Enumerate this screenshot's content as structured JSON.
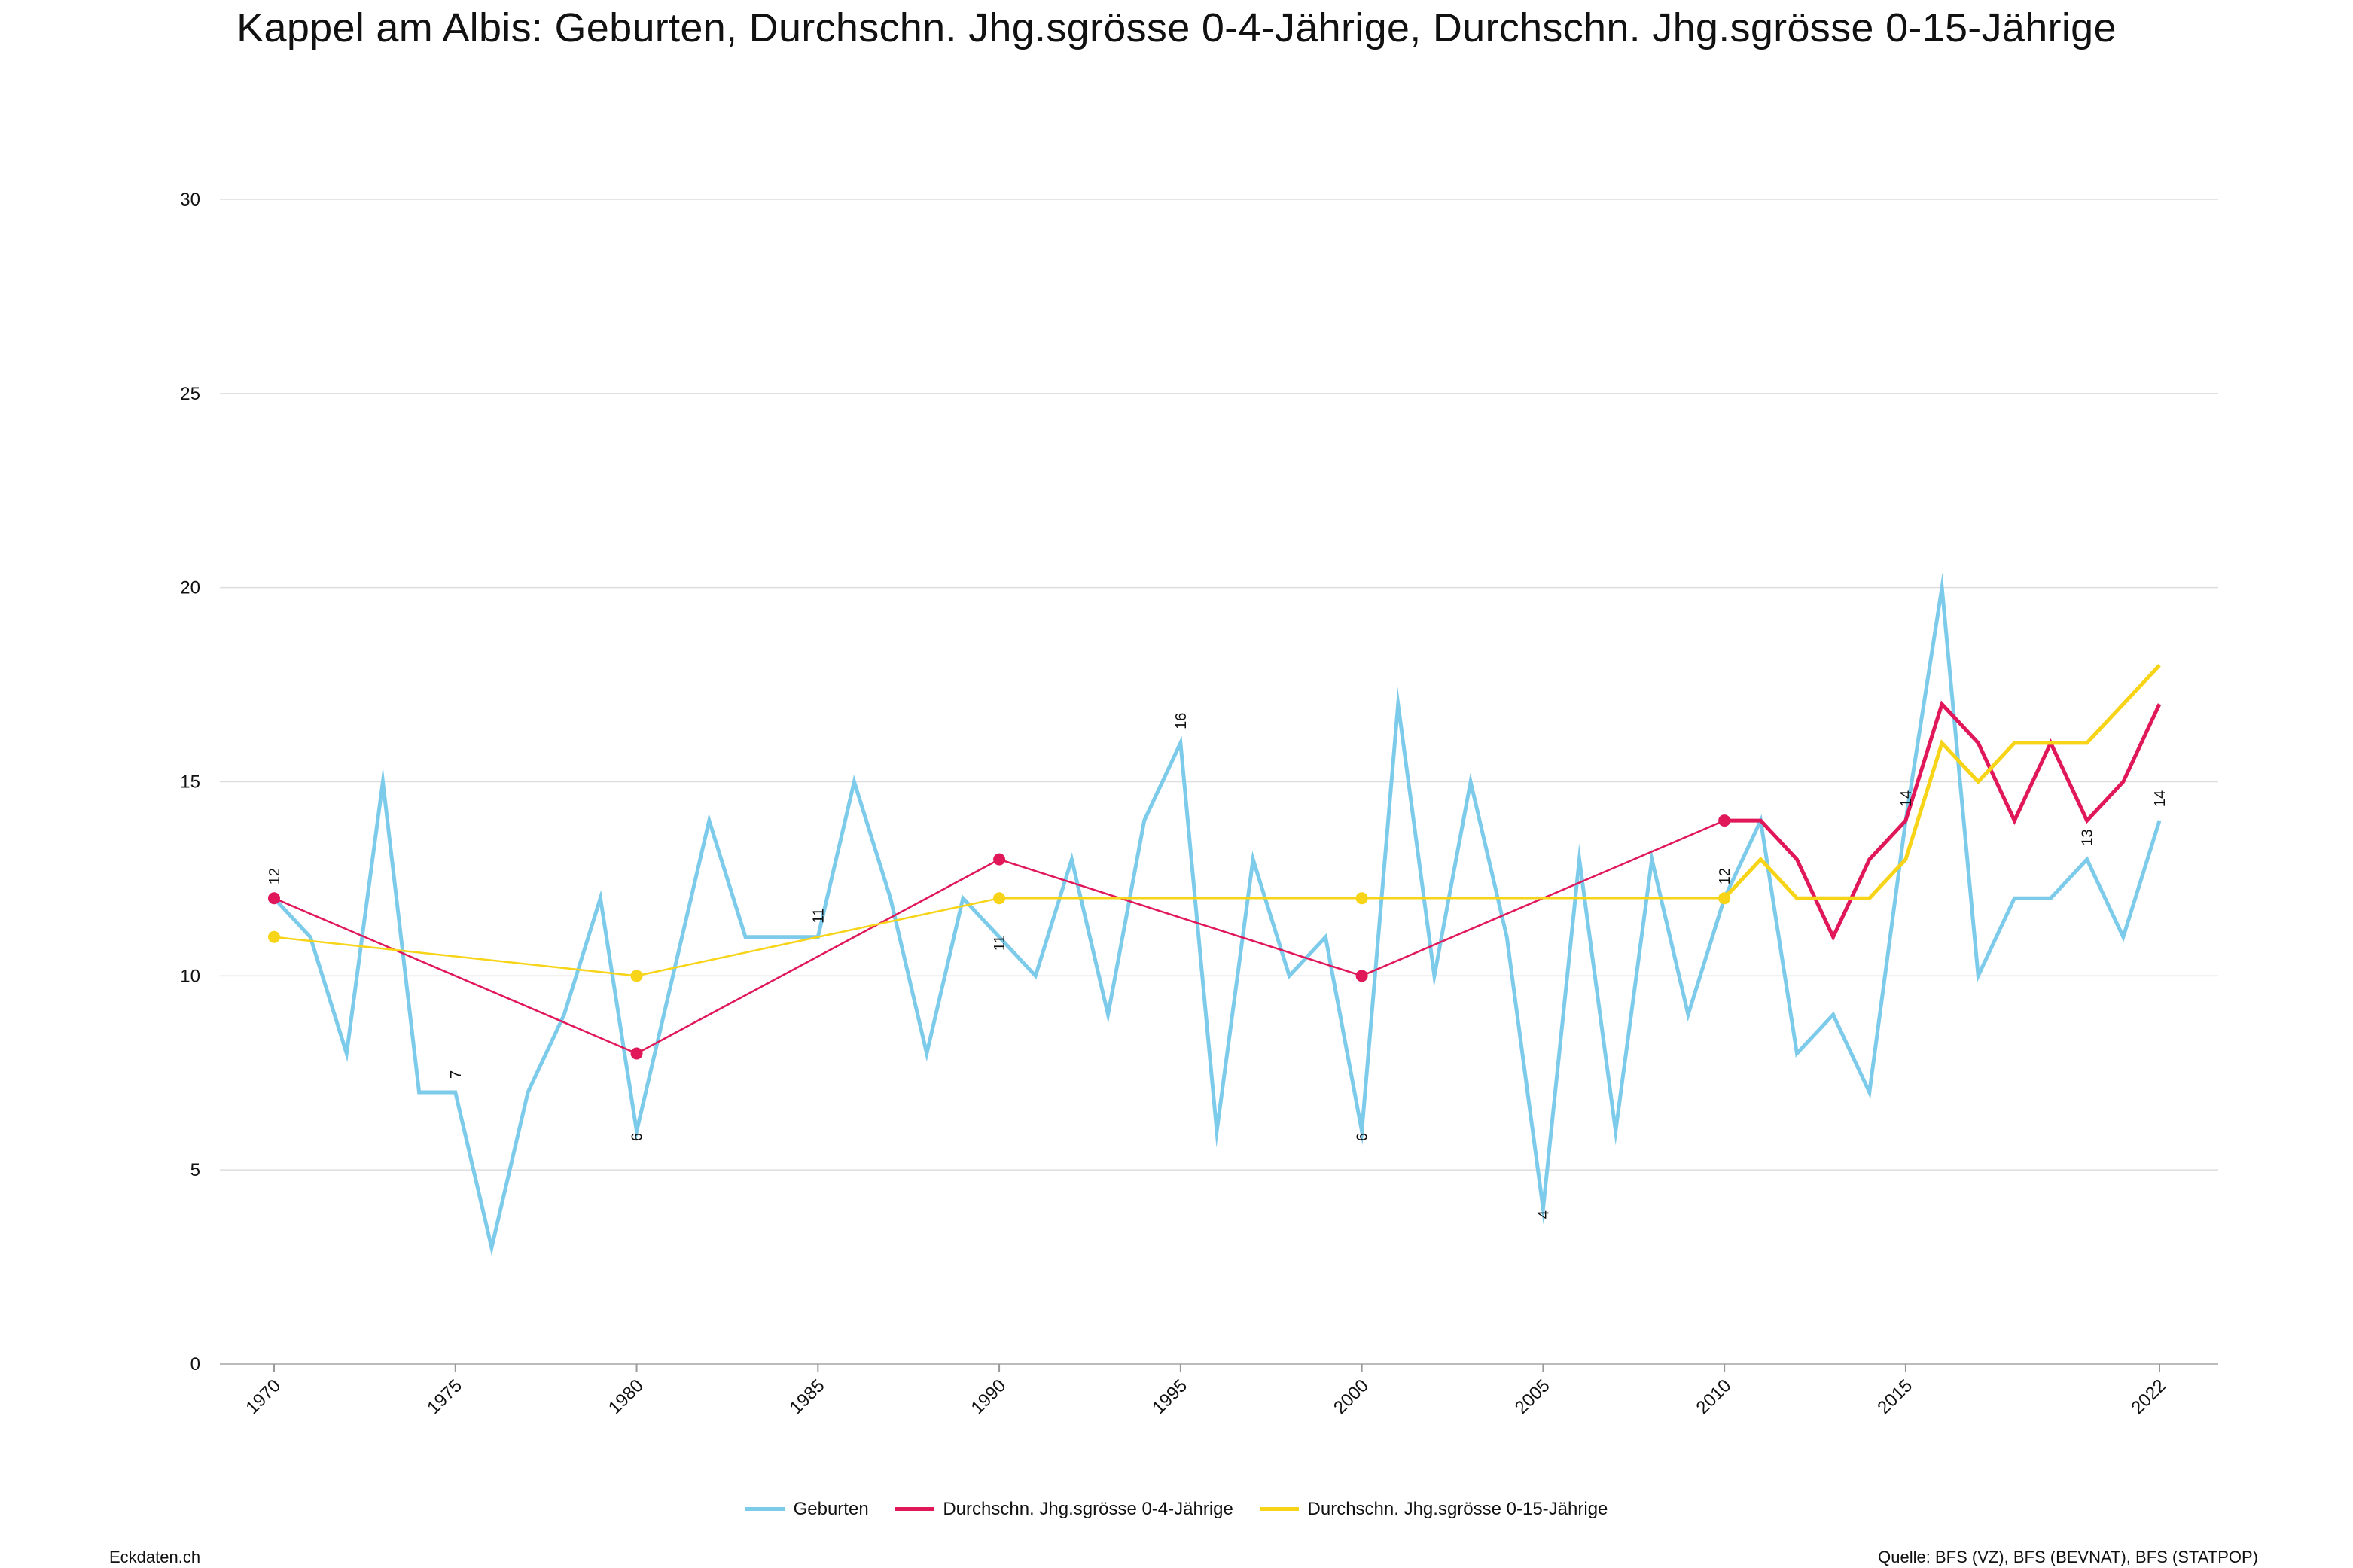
{
  "title": "Kappel am Albis: Geburten, Durchschn. Jhg.sgrösse 0-4-Jährige, Durchschn. Jhg.sgrösse 0-15-Jährige",
  "footer": {
    "left": "Eckdaten.ch",
    "right": "Quelle: BFS (VZ), BFS (BEVNAT), BFS (STATPOP)"
  },
  "colors": {
    "geburten": "#7dcbea",
    "jhg04": "#e0185a",
    "jhg015": "#f7d417",
    "grid": "#dddddd"
  },
  "chart_data": {
    "type": "line",
    "title": "Kappel am Albis: Geburten, Durchschn. Jhg.sgrösse 0-4-Jährige, Durchschn. Jhg.sgrösse 0-15-Jährige",
    "xlim": [
      1970,
      2022
    ],
    "ylim": [
      0,
      30
    ],
    "x_ticks": [
      "1970",
      "1975",
      "1980",
      "1985",
      "1990",
      "1995",
      "2000",
      "2005",
      "2010",
      "2015",
      "2022"
    ],
    "y_ticks": [
      "0",
      "5",
      "10",
      "15",
      "20",
      "25",
      "30"
    ],
    "grid": "horizontal",
    "legend_position": "bottom",
    "series": [
      {
        "name": "Geburten",
        "x": [
          1970,
          1971,
          1972,
          1973,
          1974,
          1975,
          1976,
          1977,
          1978,
          1979,
          1980,
          1981,
          1982,
          1983,
          1984,
          1985,
          1986,
          1987,
          1988,
          1989,
          1990,
          1991,
          1992,
          1993,
          1994,
          1995,
          1996,
          1997,
          1998,
          1999,
          2000,
          2001,
          2002,
          2003,
          2004,
          2005,
          2006,
          2007,
          2008,
          2009,
          2010,
          2011,
          2012,
          2013,
          2014,
          2015,
          2016,
          2017,
          2018,
          2019,
          2020,
          2021,
          2022
        ],
        "y": [
          12,
          11,
          8,
          15,
          7,
          7,
          3,
          7,
          9,
          12,
          6,
          10,
          14,
          11,
          11,
          11,
          15,
          12,
          8,
          12,
          11,
          10,
          13,
          9,
          14,
          16,
          6,
          13,
          10,
          11,
          6,
          17,
          10,
          15,
          11,
          4,
          13,
          6,
          13,
          9,
          12,
          14,
          8,
          9,
          7,
          14,
          20,
          10,
          12,
          12,
          13,
          11,
          14
        ]
      },
      {
        "name": "Durchschn. Jhg.sgrösse 0-4-Jährige",
        "x": [
          1970,
          1980,
          1990,
          2000,
          2010,
          2011,
          2012,
          2013,
          2014,
          2015,
          2016,
          2017,
          2018,
          2019,
          2020,
          2021,
          2022
        ],
        "y": [
          12,
          8,
          13,
          10,
          14,
          14,
          13,
          11,
          13,
          14,
          17,
          16,
          14,
          16,
          14,
          15,
          17
        ]
      },
      {
        "name": "Durchschn. Jhg.sgrösse 0-15-Jährige",
        "x": [
          1970,
          1980,
          1990,
          2000,
          2010,
          2011,
          2012,
          2013,
          2014,
          2015,
          2016,
          2017,
          2018,
          2019,
          2020,
          2021,
          2022
        ],
        "y": [
          11,
          10,
          12,
          12,
          12,
          13,
          12,
          12,
          12,
          13,
          16,
          15,
          16,
          16,
          16,
          17,
          18
        ]
      }
    ],
    "data_labels": [
      {
        "series": "Geburten",
        "x": 1970,
        "text": "12",
        "pos": "above"
      },
      {
        "series": "Geburten",
        "x": 1975,
        "text": "7",
        "pos": "above"
      },
      {
        "series": "Geburten",
        "x": 1980,
        "text": "6",
        "pos": "on"
      },
      {
        "series": "Geburten",
        "x": 1985,
        "text": "11",
        "pos": "above"
      },
      {
        "series": "Geburten",
        "x": 1990,
        "text": "11",
        "pos": "on"
      },
      {
        "series": "Geburten",
        "x": 1995,
        "text": "16",
        "pos": "above"
      },
      {
        "series": "Geburten",
        "x": 2000,
        "text": "6",
        "pos": "on"
      },
      {
        "series": "Geburten",
        "x": 2005,
        "text": "4",
        "pos": "on"
      },
      {
        "series": "Geburten",
        "x": 2010,
        "text": "12",
        "pos": "above"
      },
      {
        "series": "Geburten",
        "x": 2015,
        "text": "14",
        "pos": "above"
      },
      {
        "series": "Geburten",
        "x": 2020,
        "text": "13",
        "pos": "above"
      },
      {
        "series": "Geburten",
        "x": 2022,
        "text": "14",
        "pos": "above"
      }
    ]
  }
}
